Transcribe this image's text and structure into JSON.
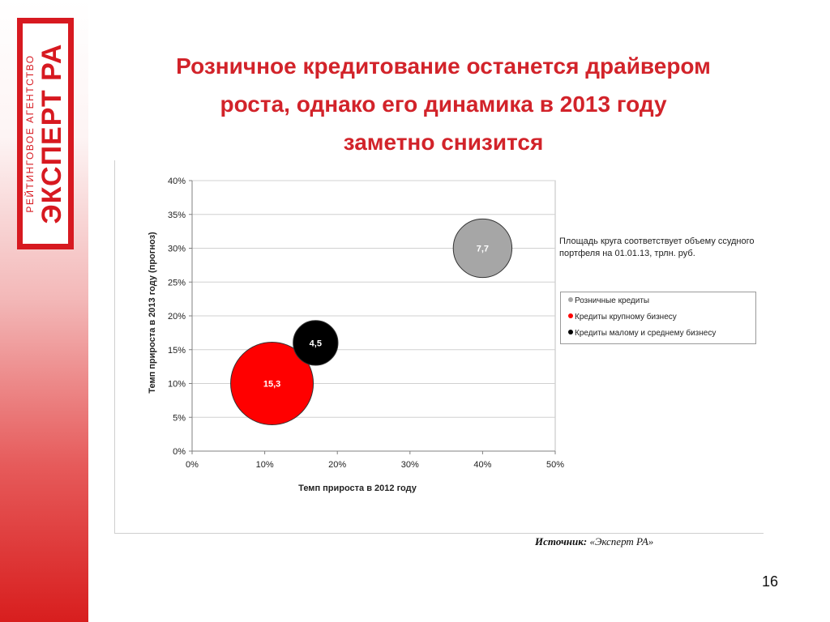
{
  "logo": {
    "main": "ЭКСПЕРТ РА",
    "sub": "РЕЙТИНГОВОЕ АГЕНТСТВО"
  },
  "slide": {
    "title_lines": [
      "Розничное кредитование останется драйвером",
      "роста, однако его динамика в 2013 году",
      "заметно снизится"
    ],
    "source_label": "Источник:",
    "source_value": "«Эксперт РА»",
    "page_number": "16"
  },
  "colors": {
    "accent": "#d2232a",
    "retail": "#a6a6a6",
    "large": "#ff0000",
    "sme": "#000000",
    "grid": "#d0d0d0"
  },
  "chart_data": {
    "type": "scatter",
    "bubble": true,
    "title": "",
    "xlabel": "Темп прироста в 2012 году",
    "ylabel": "Темп прироста в 2013 году (прогноз)",
    "xlim": [
      0,
      50
    ],
    "ylim": [
      0,
      40
    ],
    "x_ticks": [
      "0%",
      "10%",
      "20%",
      "30%",
      "40%",
      "50%"
    ],
    "y_ticks": [
      "0%",
      "5%",
      "10%",
      "15%",
      "20%",
      "25%",
      "30%",
      "35%",
      "40%"
    ],
    "grid": true,
    "legend_position": "right",
    "note": "Площадь круга соответствует объему ссудного портфеля на 01.01.13, трлн. руб.",
    "series": [
      {
        "name": "Розничные кредиты",
        "color": "#a6a6a6",
        "x": 40,
        "y": 30,
        "size": 7.7,
        "label": "7,7"
      },
      {
        "name": "Кредиты крупному бизнесу",
        "color": "#ff0000",
        "x": 11,
        "y": 10,
        "size": 15.3,
        "label": "15,3"
      },
      {
        "name": "Кредиты малому и среднему бизнесу",
        "color": "#000000",
        "x": 17,
        "y": 16,
        "size": 4.5,
        "label": "4,5"
      }
    ]
  }
}
